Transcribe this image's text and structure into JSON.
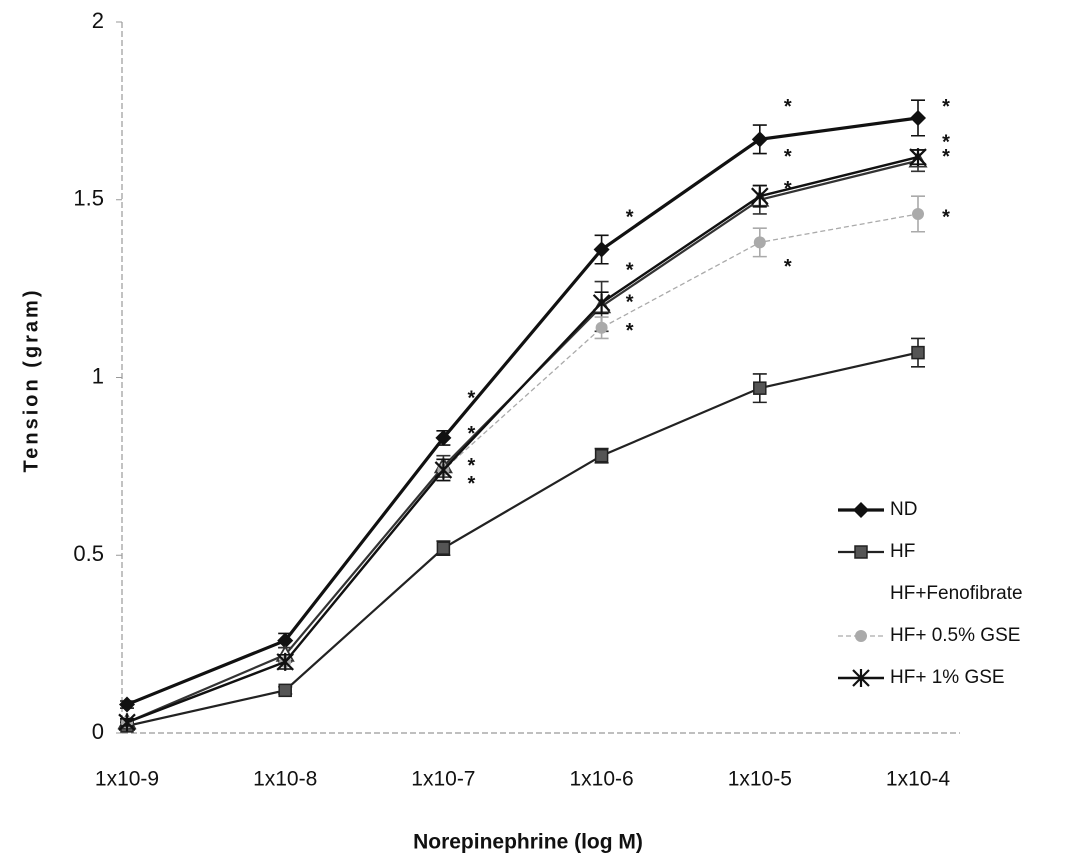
{
  "chart_data": {
    "type": "line",
    "x_label": "Norepinephrine (log M)",
    "y_label": "Tension (gram)",
    "categories": [
      "1x10-9",
      "1x10-8",
      "1x10-7",
      "1x10-6",
      "1x10-5",
      "1x10-4"
    ],
    "ylim": [
      0,
      2
    ],
    "yticks": [
      0,
      0.5,
      1,
      1.5,
      2
    ],
    "grid": false,
    "legend": "right",
    "series": [
      {
        "name": "ND",
        "color": "#111111",
        "marker": "diamond",
        "values": [
          0.08,
          0.26,
          0.83,
          1.36,
          1.67,
          1.73
        ],
        "errors": [
          0.01,
          0.02,
          0.02,
          0.04,
          0.04,
          0.05
        ]
      },
      {
        "name": "HF",
        "color": "#222222",
        "marker": "square",
        "values": [
          0.02,
          0.12,
          0.52,
          0.78,
          0.97,
          1.07
        ],
        "errors": [
          0.01,
          0.01,
          0.02,
          0.02,
          0.04,
          0.04
        ]
      },
      {
        "name": "HF+Fenofibrate",
        "color": "#333333",
        "marker": "triangle",
        "values": [
          0.03,
          0.22,
          0.75,
          1.2,
          1.5,
          1.61
        ],
        "errors": [
          0.01,
          0.02,
          0.03,
          0.07,
          0.04,
          0.03
        ]
      },
      {
        "name": "HF+ 0.5% GSE",
        "color": "#aaaaaa",
        "marker": "circle",
        "values": [
          0.03,
          0.2,
          0.74,
          1.14,
          1.38,
          1.46
        ],
        "errors": [
          0.01,
          0.02,
          0.03,
          0.03,
          0.04,
          0.05
        ]
      },
      {
        "name": "HF+ 1% GSE",
        "color": "#111111",
        "marker": "asterisk",
        "values": [
          0.03,
          0.2,
          0.74,
          1.21,
          1.51,
          1.62
        ],
        "errors": [
          0.01,
          0.02,
          0.03,
          0.03,
          0.03,
          0.02
        ]
      }
    ],
    "annotations": [
      {
        "text": "*",
        "category": 2,
        "y": 0.95
      },
      {
        "text": "*",
        "category": 2,
        "y": 0.85
      },
      {
        "text": "*",
        "category": 2,
        "y": 0.76
      },
      {
        "text": "*",
        "category": 2,
        "y": 0.71
      },
      {
        "text": "*",
        "category": 3,
        "y": 1.46
      },
      {
        "text": "*",
        "category": 3,
        "y": 1.31
      },
      {
        "text": "*",
        "category": 3,
        "y": 1.22
      },
      {
        "text": "*",
        "category": 3,
        "y": 1.14
      },
      {
        "text": "*",
        "category": 4,
        "y": 1.77
      },
      {
        "text": "*",
        "category": 4,
        "y": 1.63
      },
      {
        "text": "*",
        "category": 4,
        "y": 1.54
      },
      {
        "text": "*",
        "category": 4,
        "y": 1.32
      },
      {
        "text": "*",
        "category": 5,
        "y": 1.77
      },
      {
        "text": "*",
        "category": 5,
        "y": 1.67
      },
      {
        "text": "*",
        "category": 5,
        "y": 1.63
      },
      {
        "text": "*",
        "category": 5,
        "y": 1.46
      }
    ]
  }
}
